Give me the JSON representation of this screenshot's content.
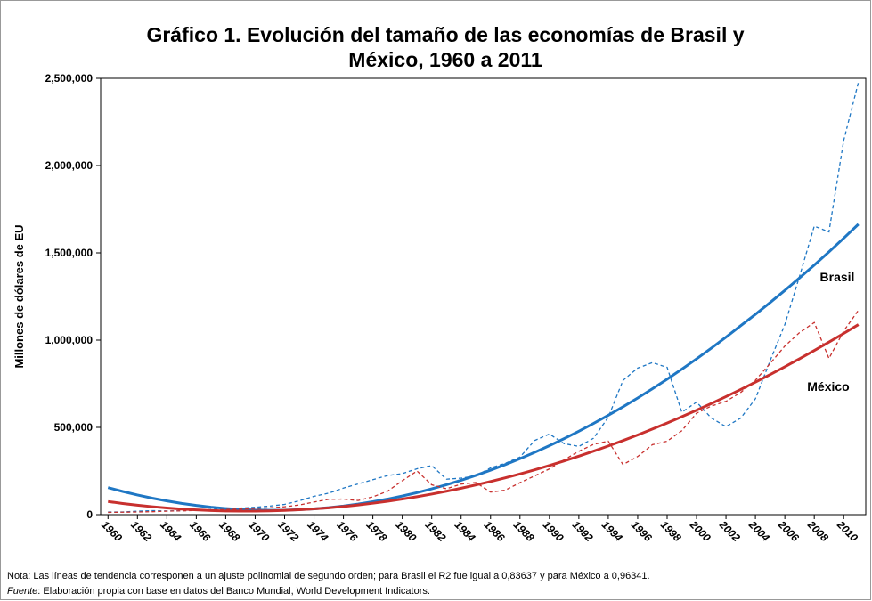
{
  "chart_data": {
    "type": "line",
    "title": [
      "Gráfico 1. Evolución del tamaño de las economías de Brasil y",
      "México, 1960 a 2011"
    ],
    "y_label": "Millones de dólares de EU",
    "x": [
      1960,
      1961,
      1962,
      1963,
      1964,
      1965,
      1966,
      1967,
      1968,
      1969,
      1970,
      1971,
      1972,
      1973,
      1974,
      1975,
      1976,
      1977,
      1978,
      1979,
      1980,
      1981,
      1982,
      1983,
      1984,
      1985,
      1986,
      1987,
      1988,
      1989,
      1990,
      1991,
      1992,
      1993,
      1994,
      1995,
      1996,
      1997,
      1998,
      1999,
      2000,
      2001,
      2002,
      2003,
      2004,
      2005,
      2006,
      2007,
      2008,
      2009,
      2010,
      2011
    ],
    "xlim": [
      1959.5,
      2011.5
    ],
    "xticks": [
      1960,
      1962,
      1964,
      1966,
      1968,
      1970,
      1972,
      1974,
      1976,
      1978,
      1980,
      1982,
      1984,
      1986,
      1988,
      1990,
      1992,
      1994,
      1996,
      1998,
      2000,
      2002,
      2004,
      2006,
      2008,
      2010
    ],
    "ylim": [
      0,
      2500000
    ],
    "yticks": [
      0,
      {
        "value": 500000,
        "label": "500,000"
      },
      {
        "value": 1000000,
        "label": "1,000,000"
      },
      {
        "value": 1500000,
        "label": "1,500,000"
      },
      {
        "value": 2000000,
        "label": "2,000,000"
      },
      {
        "value": 2500000,
        "label": "2,500,000"
      }
    ],
    "series": [
      {
        "name": "Brasil",
        "color": "#1f77c4",
        "values": [
          15000,
          15200,
          19900,
          23000,
          21200,
          21800,
          27000,
          30600,
          33900,
          37500,
          42300,
          49200,
          58500,
          79300,
          105000,
          123000,
          152000,
          176000,
          200000,
          224000,
          235000,
          263000,
          281000,
          203000,
          209000,
          222000,
          268000,
          294000,
          330000,
          425000,
          462000,
          407000,
          391000,
          438000,
          558000,
          769000,
          840000,
          871000,
          844000,
          587000,
          645000,
          554000,
          504000,
          553000,
          664000,
          882000,
          1089000,
          1366000,
          1653000,
          1620000,
          2143000,
          2477000
        ],
        "trend": [
          154900,
          132700,
          112500,
          94400,
          78500,
          64600,
          52800,
          43000,
          35400,
          29900,
          26400,
          25000,
          25700,
          28500,
          33400,
          40400,
          49400,
          60600,
          73800,
          89100,
          106500,
          126000,
          147600,
          171200,
          197000,
          224800,
          254700,
          286700,
          320800,
          357000,
          395200,
          435500,
          478000,
          522500,
          569100,
          617700,
          668500,
          721400,
          776300,
          833400,
          892500,
          953700,
          1017000,
          1082400,
          1147800,
          1215200,
          1284700,
          1356400,
          1430100,
          1506000,
          1583800,
          1663800
        ]
      },
      {
        "name": "México",
        "color": "#c8302e",
        "values": [
          13000,
          14200,
          15200,
          17000,
          20100,
          21800,
          24300,
          26600,
          29400,
          32500,
          35500,
          39200,
          45200,
          55300,
          72000,
          88000,
          89000,
          81000,
          102000,
          134000,
          194000,
          250000,
          171000,
          148000,
          175000,
          184000,
          129000,
          140000,
          183000,
          222000,
          262000,
          314000,
          363000,
          403000,
          421000,
          287000,
          333000,
          401000,
          421000,
          481000,
          581000,
          622000,
          649000,
          700000,
          770000,
          866000,
          966000,
          1043000,
          1101000,
          895000,
          1052000,
          1171000
        ],
        "trend": [
          75000,
          64000,
          54100,
          45600,
          38200,
          32100,
          27300,
          23700,
          21300,
          20100,
          20200,
          21500,
          24100,
          27900,
          32900,
          39200,
          46700,
          55500,
          65400,
          76700,
          89100,
          102800,
          117700,
          133900,
          151300,
          169900,
          189800,
          211000,
          233300,
          256900,
          281700,
          307800,
          335100,
          363700,
          393400,
          424500,
          456700,
          490300,
          525000,
          561000,
          598100,
          636600,
          676300,
          717200,
          759400,
          802800,
          847400,
          893300,
          940400,
          988700,
          1038300,
          1089100
        ]
      }
    ],
    "note": "Nota: Las líneas de tendencia corresponen a un ajuste polinomial de segundo orden; para Brasil el R2 fue igual a 0,83637 y para México a 0,96341.",
    "source_label": "Fuente",
    "source_text": ": Elaboración propia con base en datos del Banco Mundial, World Development Indicators."
  }
}
